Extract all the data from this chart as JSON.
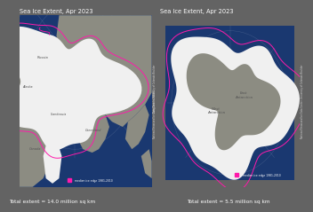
{
  "title": "Sea Ice Extent, Apr 2023",
  "bg_color": "#636363",
  "ocean_color": "#1a3870",
  "ice_color": "#f0f0f0",
  "land_color": "#8c8c82",
  "median_color": "#ff1aaa",
  "left_total": "Total extent = 14.0 million sq km",
  "right_total": "Total extent = 5.5 million sq km",
  "legend_label": "median ice edge 1981-2010",
  "credit": "National Snow and Ice Data Center, University of Colorado Boulder"
}
